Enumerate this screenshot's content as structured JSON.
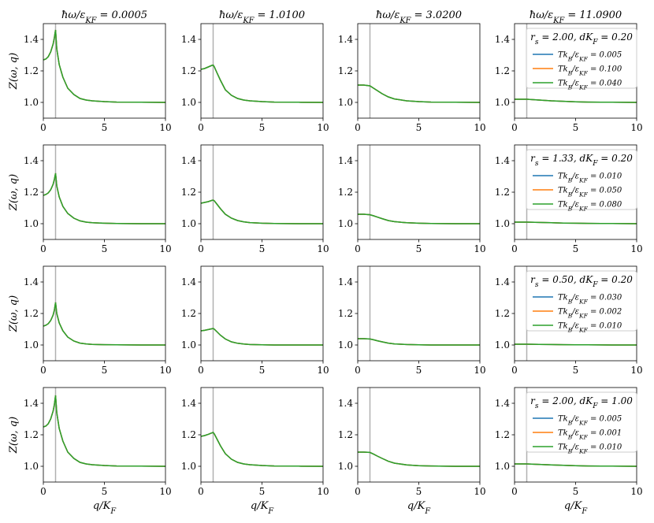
{
  "colors": {
    "series": [
      "#1f77b4",
      "#ff7f0e",
      "#2ca02c"
    ],
    "vline": "#b0b0b0",
    "frame": "#000000",
    "legend_border": "#cccccc"
  },
  "figure": {
    "column_titles": [
      "ħω/ε_{K_F} = 0.0005",
      "ħω/ε_{K_F} = 1.0100",
      "ħω/ε_{K_F} = 3.0200",
      "ħω/ε_{K_F} = 11.0900"
    ],
    "ylabel": "Z(ω, q)",
    "xlabel": "q/K_F"
  },
  "chart_data": [
    {
      "type": "line",
      "row": 0,
      "xlim": [
        0,
        10
      ],
      "ylim": [
        0.9,
        1.5
      ],
      "xticks": [
        "0",
        "5",
        "10"
      ],
      "yticks": [
        "1.0",
        "1.2",
        "1.4"
      ],
      "vline_x": 1.0,
      "legend_title": "r_s = 2.00, dK_F = 0.20",
      "series": [
        {
          "name": "Tk_B/ε_{K_F} = 0.005"
        },
        {
          "name": "Tk_B/ε_{K_F} = 0.100"
        },
        {
          "name": "Tk_B/ε_{K_F} = 0.040"
        }
      ],
      "curves": [
        {
          "omega": "0.0005",
          "x": [
            0,
            0.2,
            0.4,
            0.6,
            0.8,
            0.9,
            1.0,
            1.1,
            1.3,
            1.6,
            2.0,
            2.5,
            3.0,
            3.5,
            4.0,
            5.0,
            6.0,
            8.0,
            10.0
          ],
          "y": [
            1.27,
            1.275,
            1.29,
            1.32,
            1.37,
            1.41,
            1.46,
            1.34,
            1.24,
            1.16,
            1.09,
            1.05,
            1.025,
            1.015,
            1.01,
            1.005,
            1.002,
            1.001,
            1.0
          ]
        },
        {
          "omega": "1.0100",
          "x": [
            0,
            0.3,
            0.6,
            0.9,
            1.0,
            1.1,
            1.3,
            1.6,
            2.0,
            2.5,
            3.0,
            3.5,
            4.0,
            5.0,
            6.0,
            8.0,
            10.0
          ],
          "y": [
            1.21,
            1.215,
            1.225,
            1.235,
            1.237,
            1.225,
            1.19,
            1.14,
            1.08,
            1.045,
            1.025,
            1.015,
            1.01,
            1.005,
            1.002,
            1.001,
            1.0
          ]
        },
        {
          "omega": "3.0200",
          "x": [
            0,
            0.5,
            1.0,
            1.3,
            1.6,
            2.0,
            2.5,
            3.0,
            4.0,
            5.0,
            6.0,
            8.0,
            10.0
          ],
          "y": [
            1.11,
            1.11,
            1.105,
            1.09,
            1.075,
            1.055,
            1.035,
            1.022,
            1.01,
            1.005,
            1.002,
            1.001,
            1.0
          ]
        },
        {
          "omega": "11.0900",
          "x": [
            0,
            1.0,
            2.0,
            3.0,
            4.0,
            5.0,
            6.0,
            8.0,
            10.0
          ],
          "y": [
            1.02,
            1.02,
            1.015,
            1.01,
            1.007,
            1.004,
            1.002,
            1.001,
            1.0
          ]
        }
      ]
    },
    {
      "type": "line",
      "row": 1,
      "xlim": [
        0,
        10
      ],
      "ylim": [
        0.9,
        1.5
      ],
      "xticks": [
        "0",
        "5",
        "10"
      ],
      "yticks": [
        "1.0",
        "1.2",
        "1.4"
      ],
      "vline_x": 1.0,
      "legend_title": "r_s = 1.33, dK_F = 0.20",
      "series": [
        {
          "name": "Tk_B/ε_{K_F} = 0.010"
        },
        {
          "name": "Tk_B/ε_{K_F} = 0.050"
        },
        {
          "name": "Tk_B/ε_{K_F} = 0.080"
        }
      ],
      "curves": [
        {
          "omega": "0.0005",
          "x": [
            0,
            0.2,
            0.4,
            0.6,
            0.8,
            0.9,
            1.0,
            1.1,
            1.3,
            1.6,
            2.0,
            2.5,
            3.0,
            3.5,
            4.0,
            5.0,
            6.0,
            8.0,
            10.0
          ],
          "y": [
            1.18,
            1.185,
            1.195,
            1.215,
            1.25,
            1.28,
            1.32,
            1.24,
            1.17,
            1.11,
            1.065,
            1.035,
            1.018,
            1.01,
            1.006,
            1.003,
            1.001,
            1.0,
            1.0
          ]
        },
        {
          "omega": "1.0100",
          "x": [
            0,
            0.3,
            0.6,
            0.9,
            1.0,
            1.1,
            1.3,
            1.6,
            2.0,
            2.5,
            3.0,
            3.5,
            4.0,
            5.0,
            6.0,
            8.0,
            10.0
          ],
          "y": [
            1.13,
            1.135,
            1.14,
            1.148,
            1.15,
            1.145,
            1.125,
            1.095,
            1.06,
            1.035,
            1.02,
            1.012,
            1.007,
            1.003,
            1.001,
            1.0,
            1.0
          ]
        },
        {
          "omega": "3.0200",
          "x": [
            0,
            0.5,
            1.0,
            1.3,
            1.6,
            2.0,
            2.5,
            3.0,
            4.0,
            5.0,
            6.0,
            8.0,
            10.0
          ],
          "y": [
            1.06,
            1.06,
            1.057,
            1.05,
            1.042,
            1.032,
            1.02,
            1.013,
            1.006,
            1.003,
            1.001,
            1.0,
            1.0
          ]
        },
        {
          "omega": "11.0900",
          "x": [
            0,
            1.0,
            2.0,
            3.0,
            4.0,
            5.0,
            6.0,
            8.0,
            10.0
          ],
          "y": [
            1.01,
            1.01,
            1.008,
            1.006,
            1.004,
            1.003,
            1.002,
            1.001,
            1.0
          ]
        }
      ]
    },
    {
      "type": "line",
      "row": 2,
      "xlim": [
        0,
        10
      ],
      "ylim": [
        0.9,
        1.5
      ],
      "xticks": [
        "0",
        "5",
        "10"
      ],
      "yticks": [
        "1.0",
        "1.2",
        "1.4"
      ],
      "vline_x": 1.0,
      "legend_title": "r_s = 0.50, dK_F = 0.20",
      "series": [
        {
          "name": "Tk_B/ε_{K_F} = 0.030"
        },
        {
          "name": "Tk_B/ε_{K_F} = 0.002"
        },
        {
          "name": "Tk_B/ε_{K_F} = 0.010"
        }
      ],
      "curves": [
        {
          "omega": "0.0005",
          "x": [
            0,
            0.2,
            0.4,
            0.6,
            0.8,
            0.9,
            1.0,
            1.1,
            1.3,
            1.6,
            2.0,
            2.5,
            3.0,
            3.5,
            4.0,
            5.0,
            6.0,
            8.0,
            10.0
          ],
          "y": [
            1.12,
            1.125,
            1.135,
            1.155,
            1.19,
            1.22,
            1.27,
            1.2,
            1.14,
            1.09,
            1.05,
            1.025,
            1.012,
            1.007,
            1.004,
            1.002,
            1.001,
            1.0,
            1.0
          ]
        },
        {
          "omega": "1.0100",
          "x": [
            0,
            0.3,
            0.6,
            0.9,
            1.0,
            1.1,
            1.3,
            1.6,
            2.0,
            2.5,
            3.0,
            3.5,
            4.0,
            5.0,
            6.0,
            8.0,
            10.0
          ],
          "y": [
            1.09,
            1.093,
            1.098,
            1.103,
            1.105,
            1.1,
            1.085,
            1.062,
            1.038,
            1.02,
            1.011,
            1.006,
            1.003,
            1.001,
            1.0,
            1.0,
            1.0
          ]
        },
        {
          "omega": "3.0200",
          "x": [
            0,
            0.5,
            1.0,
            1.3,
            1.6,
            2.0,
            2.5,
            3.0,
            4.0,
            5.0,
            6.0,
            8.0,
            10.0
          ],
          "y": [
            1.04,
            1.04,
            1.038,
            1.033,
            1.027,
            1.02,
            1.012,
            1.007,
            1.003,
            1.001,
            1.0,
            1.0,
            1.0
          ]
        },
        {
          "omega": "11.0900",
          "x": [
            0,
            1.0,
            2.0,
            3.0,
            4.0,
            5.0,
            6.0,
            8.0,
            10.0
          ],
          "y": [
            1.005,
            1.005,
            1.004,
            1.003,
            1.002,
            1.001,
            1.001,
            1.0,
            1.0
          ]
        }
      ]
    },
    {
      "type": "line",
      "row": 3,
      "xlim": [
        0,
        10
      ],
      "ylim": [
        0.9,
        1.5
      ],
      "xticks": [
        "0",
        "5",
        "10"
      ],
      "yticks": [
        "1.0",
        "1.2",
        "1.4"
      ],
      "vline_x": 1.0,
      "legend_title": "r_s = 2.00, dK_F = 1.00",
      "series": [
        {
          "name": "Tk_B/ε_{K_F} = 0.005"
        },
        {
          "name": "Tk_B/ε_{K_F} = 0.001"
        },
        {
          "name": "Tk_B/ε_{K_F} = 0.010"
        }
      ],
      "curves": [
        {
          "omega": "0.0005",
          "x": [
            0,
            0.2,
            0.4,
            0.6,
            0.8,
            0.9,
            1.0,
            1.1,
            1.3,
            1.6,
            2.0,
            2.5,
            3.0,
            3.5,
            4.0,
            5.0,
            6.0,
            8.0,
            10.0
          ],
          "y": [
            1.25,
            1.255,
            1.27,
            1.3,
            1.35,
            1.39,
            1.45,
            1.34,
            1.24,
            1.16,
            1.09,
            1.05,
            1.025,
            1.015,
            1.01,
            1.005,
            1.002,
            1.001,
            1.0
          ]
        },
        {
          "omega": "1.0100",
          "x": [
            0,
            0.3,
            0.6,
            0.9,
            1.0,
            1.1,
            1.3,
            1.6,
            2.0,
            2.5,
            3.0,
            3.5,
            4.0,
            5.0,
            6.0,
            8.0,
            10.0
          ],
          "y": [
            1.19,
            1.195,
            1.203,
            1.212,
            1.215,
            1.205,
            1.175,
            1.13,
            1.08,
            1.045,
            1.025,
            1.015,
            1.01,
            1.005,
            1.002,
            1.001,
            1.0
          ]
        },
        {
          "omega": "3.0200",
          "x": [
            0,
            0.5,
            1.0,
            1.3,
            1.6,
            2.0,
            2.5,
            3.0,
            4.0,
            5.0,
            6.0,
            8.0,
            10.0
          ],
          "y": [
            1.09,
            1.09,
            1.088,
            1.077,
            1.065,
            1.05,
            1.032,
            1.02,
            1.009,
            1.004,
            1.002,
            1.0,
            1.0
          ]
        },
        {
          "omega": "11.0900",
          "x": [
            0,
            1.0,
            2.0,
            3.0,
            4.0,
            5.0,
            6.0,
            8.0,
            10.0
          ],
          "y": [
            1.015,
            1.015,
            1.012,
            1.009,
            1.006,
            1.004,
            1.002,
            1.001,
            1.0
          ]
        }
      ]
    }
  ]
}
